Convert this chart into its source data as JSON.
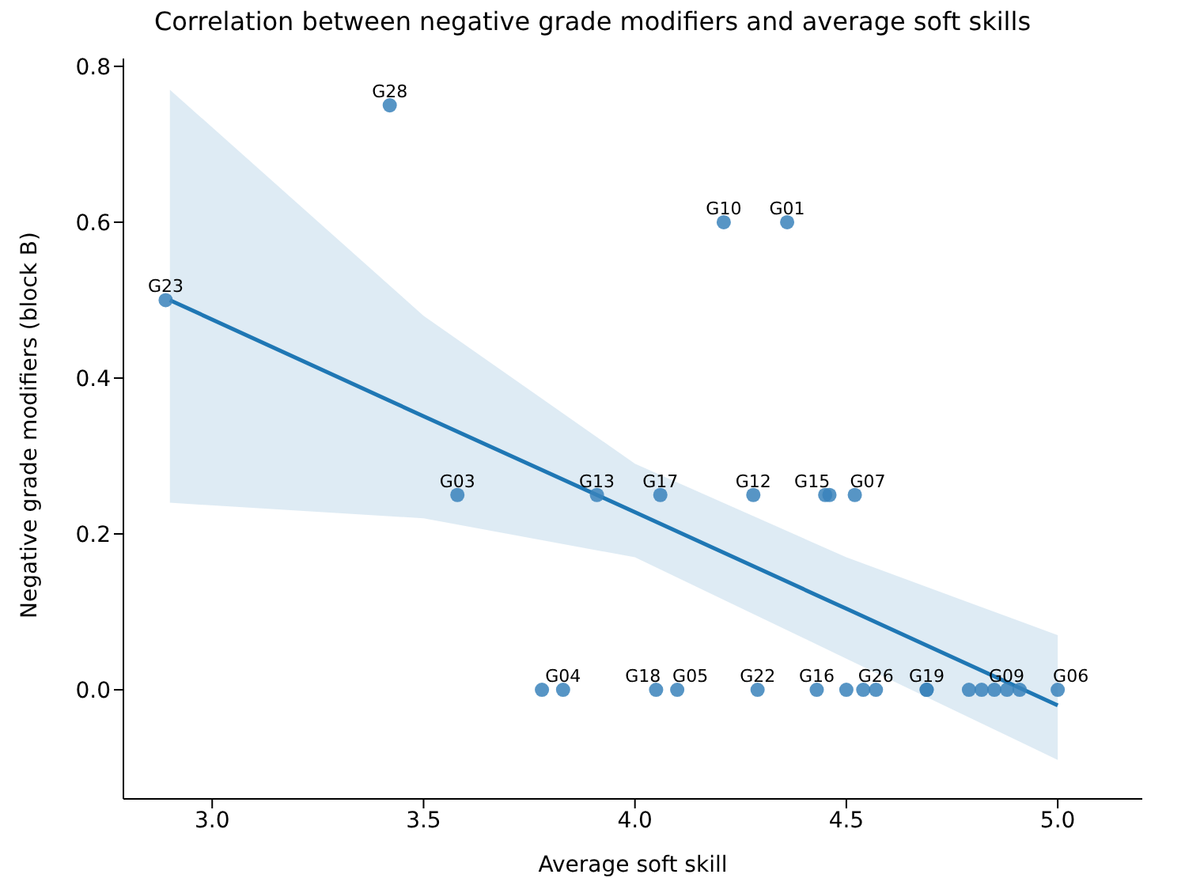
{
  "chart_data": {
    "type": "scatter",
    "title": "Correlation between negative grade modifiers and average soft skills",
    "xlabel": "Average soft skill",
    "ylabel": "Negative grade modifiers (block B)",
    "xlim": [
      2.79,
      5.2
    ],
    "ylim": [
      -0.14,
      0.81
    ],
    "xticks": [
      {
        "value": 3,
        "label": "3.0"
      },
      3.5,
      {
        "value": 4,
        "label": "4.0"
      },
      4.5,
      {
        "value": 5,
        "label": "5.0"
      }
    ],
    "yticks": [
      {
        "value": 0,
        "label": "0.0"
      },
      0.2,
      0.4,
      0.6,
      0.8
    ],
    "grid": false,
    "series": [
      {
        "marker": "circle",
        "color": "#3a82bb",
        "x": [
          2.89,
          3.42,
          3.58,
          3.91,
          4.06,
          4.28,
          4.45,
          4.46,
          4.52,
          4.21,
          4.36,
          3.78,
          3.83,
          4.05,
          4.1,
          4.29,
          4.43,
          4.5,
          4.54,
          4.57,
          4.69,
          4.69,
          4.79,
          4.82,
          4.85,
          4.88,
          4.91,
          5.0
        ],
        "values": [
          0.5,
          0.75,
          0.25,
          0.25,
          0.25,
          0.25,
          0.25,
          0.25,
          0.25,
          0.6,
          0.6,
          0,
          0,
          0,
          0,
          0,
          0,
          0,
          0,
          0,
          0,
          0,
          0,
          0,
          0,
          0,
          0,
          0
        ]
      },
      {
        "type": "line",
        "color": "#1f77b4",
        "x": [
          2.9,
          3.5,
          4.0,
          4.5,
          5.0
        ],
        "values": [
          0.5,
          0.351,
          0.228,
          0.104,
          -0.02
        ],
        "lower": [
          0.24,
          0.22,
          0.17,
          0.04,
          -0.09
        ],
        "upper": [
          0.77,
          0.48,
          0.29,
          0.17,
          0.07
        ]
      }
    ],
    "annotations": [
      {
        "text": "G23",
        "x": 2.89,
        "y": 0.5
      },
      {
        "text": "G28",
        "x": 3.42,
        "y": 0.75
      },
      {
        "text": "G03",
        "x": 3.58,
        "y": 0.25
      },
      {
        "text": "G13",
        "x": 3.91,
        "y": 0.25
      },
      {
        "text": "G17",
        "x": 4.06,
        "y": 0.25
      },
      {
        "text": "G12",
        "x": 4.28,
        "y": 0.25
      },
      {
        "text": "G15",
        "x": 4.45,
        "y": 0.25
      },
      {
        "text": "G07",
        "x": 4.52,
        "y": 0.25
      },
      {
        "text": "G10",
        "x": 4.21,
        "y": 0.6
      },
      {
        "text": "G01",
        "x": 4.36,
        "y": 0.6
      },
      {
        "text": "G04",
        "x": 3.83,
        "y": 0
      },
      {
        "text": "G18",
        "x": 4.05,
        "y": 0
      },
      {
        "text": "G05",
        "x": 4.1,
        "y": 0
      },
      {
        "text": "G22",
        "x": 4.29,
        "y": 0
      },
      {
        "text": "G16",
        "x": 4.43,
        "y": 0
      },
      {
        "text": "G26",
        "x": 4.57,
        "y": 0
      },
      {
        "text": "G19",
        "x": 4.69,
        "y": 0
      },
      {
        "text": "G09",
        "x": 4.91,
        "y": 0
      },
      {
        "text": "G06",
        "x": 5.0,
        "y": 0
      }
    ]
  }
}
